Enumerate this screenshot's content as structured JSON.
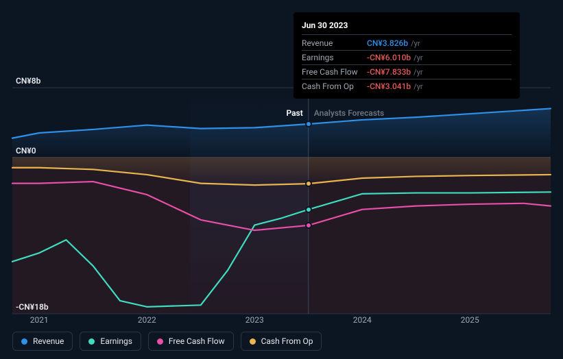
{
  "chart": {
    "type": "line",
    "background_color": "#0c1522",
    "grid_color": "#2a3544",
    "y_axis": {
      "ticks": [
        {
          "label": "CN¥8b",
          "value": 8
        },
        {
          "label": "CN¥0",
          "value": 0
        },
        {
          "label": "-CN¥18b",
          "value": -18
        }
      ],
      "min": -18,
      "max": 8,
      "label_color": "#e6e9ee",
      "label_fontsize": 12
    },
    "x_axis": {
      "ticks": [
        {
          "label": "2021",
          "value": 2021
        },
        {
          "label": "2022",
          "value": 2022
        },
        {
          "label": "2023",
          "value": 2023
        },
        {
          "label": "2024",
          "value": 2024
        },
        {
          "label": "2025",
          "value": 2025
        }
      ],
      "min": 2020.75,
      "max": 2025.75,
      "label_color": "#a0a8b5",
      "label_fontsize": 12
    },
    "zones": {
      "past": {
        "label": "Past",
        "end": 2023.5,
        "color": "#ffffff"
      },
      "forecast": {
        "label": "Analysts Forecasts",
        "start": 2023.5,
        "color": "#6b7380"
      }
    },
    "divider_x": 2023.5,
    "series": [
      {
        "name": "Revenue",
        "color": "#2e90e9",
        "fill": true,
        "fill_opacity": 0.12,
        "line_width": 2.2,
        "data": [
          {
            "x": 2020.75,
            "y": 2.2
          },
          {
            "x": 2021.0,
            "y": 2.8
          },
          {
            "x": 2021.5,
            "y": 3.2
          },
          {
            "x": 2022.0,
            "y": 3.7
          },
          {
            "x": 2022.5,
            "y": 3.3
          },
          {
            "x": 2023.0,
            "y": 3.4
          },
          {
            "x": 2023.5,
            "y": 3.826
          },
          {
            "x": 2024.0,
            "y": 4.3
          },
          {
            "x": 2024.5,
            "y": 4.6
          },
          {
            "x": 2025.0,
            "y": 5.0
          },
          {
            "x": 2025.5,
            "y": 5.4
          },
          {
            "x": 2025.75,
            "y": 5.6
          }
        ]
      },
      {
        "name": "Earnings",
        "color": "#3fdcc0",
        "fill": false,
        "line_width": 2.2,
        "data": [
          {
            "x": 2020.75,
            "y": -12.0
          },
          {
            "x": 2021.0,
            "y": -11.0
          },
          {
            "x": 2021.25,
            "y": -9.5
          },
          {
            "x": 2021.5,
            "y": -12.5
          },
          {
            "x": 2021.75,
            "y": -16.5
          },
          {
            "x": 2022.0,
            "y": -17.2
          },
          {
            "x": 2022.5,
            "y": -17.0
          },
          {
            "x": 2022.75,
            "y": -13.0
          },
          {
            "x": 2023.0,
            "y": -7.8
          },
          {
            "x": 2023.25,
            "y": -7.0
          },
          {
            "x": 2023.5,
            "y": -6.01
          },
          {
            "x": 2024.0,
            "y": -4.2
          },
          {
            "x": 2024.5,
            "y": -4.1
          },
          {
            "x": 2025.0,
            "y": -4.1
          },
          {
            "x": 2025.75,
            "y": -4.0
          }
        ]
      },
      {
        "name": "Free Cash Flow",
        "color": "#e84fa8",
        "fill": false,
        "line_width": 2.2,
        "data": [
          {
            "x": 2020.75,
            "y": -3.0
          },
          {
            "x": 2021.0,
            "y": -3.0
          },
          {
            "x": 2021.5,
            "y": -2.8
          },
          {
            "x": 2022.0,
            "y": -4.3
          },
          {
            "x": 2022.5,
            "y": -7.2
          },
          {
            "x": 2023.0,
            "y": -8.4
          },
          {
            "x": 2023.5,
            "y": -7.833
          },
          {
            "x": 2024.0,
            "y": -6.0
          },
          {
            "x": 2024.5,
            "y": -5.6
          },
          {
            "x": 2025.0,
            "y": -5.4
          },
          {
            "x": 2025.5,
            "y": -5.3
          },
          {
            "x": 2025.75,
            "y": -5.6
          }
        ]
      },
      {
        "name": "Cash From Op",
        "color": "#eab54f",
        "fill": true,
        "fill_opacity": 0.08,
        "line_width": 2.2,
        "data": [
          {
            "x": 2020.75,
            "y": -1.2
          },
          {
            "x": 2021.0,
            "y": -1.2
          },
          {
            "x": 2021.5,
            "y": -1.4
          },
          {
            "x": 2022.0,
            "y": -2.0
          },
          {
            "x": 2022.5,
            "y": -3.0
          },
          {
            "x": 2023.0,
            "y": -3.2
          },
          {
            "x": 2023.5,
            "y": -3.041
          },
          {
            "x": 2024.0,
            "y": -2.4
          },
          {
            "x": 2024.5,
            "y": -2.2
          },
          {
            "x": 2025.0,
            "y": -2.1
          },
          {
            "x": 2025.75,
            "y": -2.0
          }
        ]
      }
    ],
    "marker_x": 2023.5,
    "past_overlay": {
      "gradient_from": "#1a2840",
      "gradient_to": "transparent"
    },
    "negative_overlay": {
      "color": "#8b2a2a",
      "opacity": 0.18
    }
  },
  "tooltip": {
    "date": "Jun 30 2023",
    "rows": [
      {
        "name": "Revenue",
        "value": "CN¥3.826b",
        "suffix": "/yr",
        "color": "#2e90e9"
      },
      {
        "name": "Earnings",
        "value": "-CN¥6.010b",
        "suffix": "/yr",
        "color": "#e05a5a"
      },
      {
        "name": "Free Cash Flow",
        "value": "-CN¥7.833b",
        "suffix": "/yr",
        "color": "#e05a5a"
      },
      {
        "name": "Cash From Op",
        "value": "-CN¥3.041b",
        "suffix": "/yr",
        "color": "#e05a5a"
      }
    ]
  },
  "legend": {
    "items": [
      {
        "label": "Revenue",
        "color": "#2e90e9"
      },
      {
        "label": "Earnings",
        "color": "#3fdcc0"
      },
      {
        "label": "Free Cash Flow",
        "color": "#e84fa8"
      },
      {
        "label": "Cash From Op",
        "color": "#eab54f"
      }
    ]
  }
}
